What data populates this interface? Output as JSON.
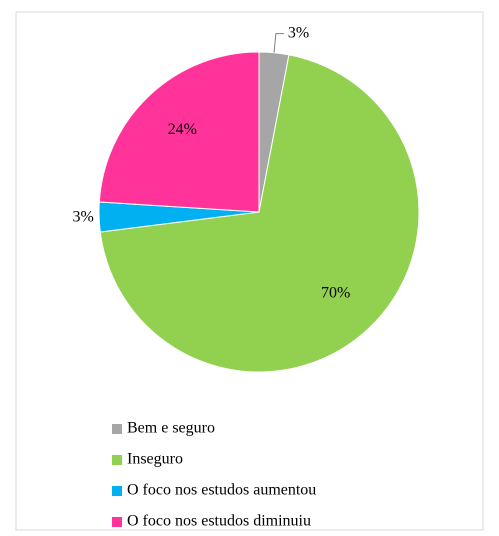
{
  "chart_data": {
    "type": "pie",
    "categories": [
      "Bem e seguro",
      "Inseguro",
      "O foco nos estudos aumentou",
      "O foco nos estudos diminuiu"
    ],
    "values": [
      3,
      70,
      3,
      24
    ],
    "value_labels": [
      "3%",
      "70%",
      "3%",
      "24%"
    ],
    "colors": [
      "#a6a6a6",
      "#92d050",
      "#00b0f0",
      "#ff3399"
    ],
    "legend": "bottom"
  }
}
